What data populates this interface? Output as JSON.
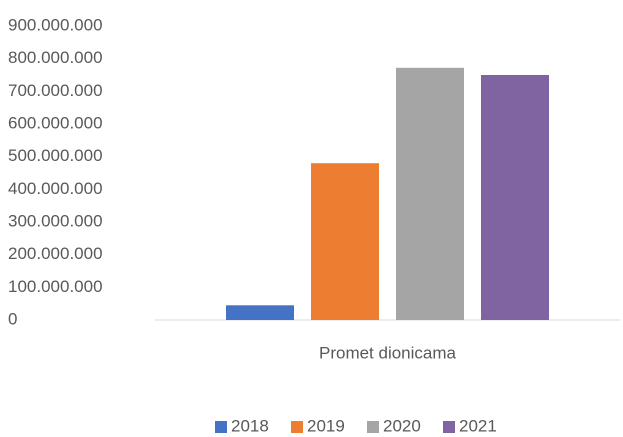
{
  "chart_data": {
    "type": "bar",
    "categories": [
      "Promet dionicama"
    ],
    "series": [
      {
        "name": "2018",
        "color": "#4472c4",
        "values": [
          45000000
        ]
      },
      {
        "name": "2019",
        "color": "#ed7d31",
        "values": [
          480000000
        ]
      },
      {
        "name": "2020",
        "color": "#a5a5a5",
        "values": [
          772000000
        ]
      },
      {
        "name": "2021",
        "color": "#8064a2",
        "values": [
          750000000
        ]
      }
    ],
    "ylim": [
      0,
      900000000
    ],
    "yticks": [
      0,
      {
        "value": 100000000,
        "label": "100.000.000"
      },
      {
        "value": 200000000,
        "label": "200.000.000"
      },
      {
        "value": 300000000,
        "label": "300.000.000"
      },
      {
        "value": 400000000,
        "label": "400.000.000"
      },
      {
        "value": 500000000,
        "label": "500.000.000"
      },
      {
        "value": 600000000,
        "label": "600.000.000"
      },
      {
        "value": 700000000,
        "label": "700.000.000"
      },
      {
        "value": 800000000,
        "label": "800.000.000"
      },
      {
        "value": 900000000,
        "label": "900.000.000"
      }
    ],
    "grid": false,
    "legend": "bottom"
  }
}
